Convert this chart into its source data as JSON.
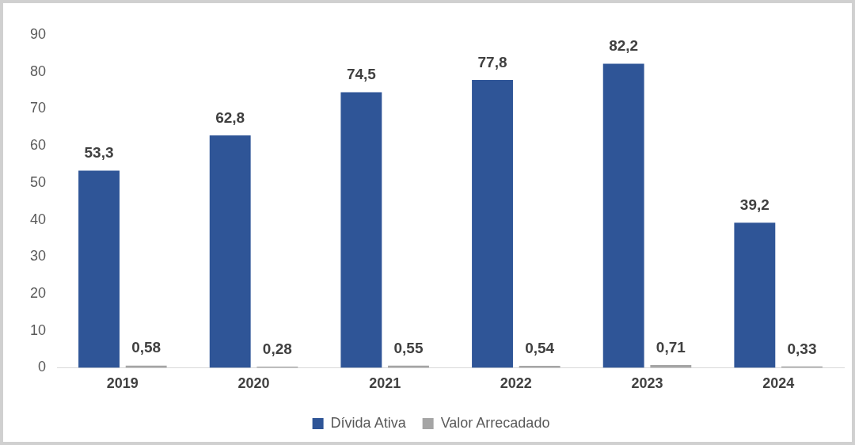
{
  "chart_data": {
    "type": "bar",
    "categories": [
      "2019",
      "2020",
      "2021",
      "2022",
      "2023",
      "2024"
    ],
    "series": [
      {
        "name": "Dívida Ativa",
        "color": "#2f5597",
        "values": [
          53.3,
          62.8,
          74.5,
          77.8,
          82.2,
          39.2
        ],
        "value_labels": [
          "53,3",
          "62,8",
          "74,5",
          "77,8",
          "82,2",
          "39,2"
        ]
      },
      {
        "name": "Valor Arrecadado",
        "color": "#a5a5a5",
        "values": [
          0.58,
          0.28,
          0.55,
          0.54,
          0.71,
          0.33
        ],
        "value_labels": [
          "0,58",
          "0,28",
          "0,55",
          "0,54",
          "0,71",
          "0,33"
        ]
      }
    ],
    "ylim": [
      0,
      90
    ],
    "yticks": [
      0,
      10,
      20,
      30,
      40,
      50,
      60,
      70,
      80,
      90
    ],
    "legend": "bottom"
  }
}
